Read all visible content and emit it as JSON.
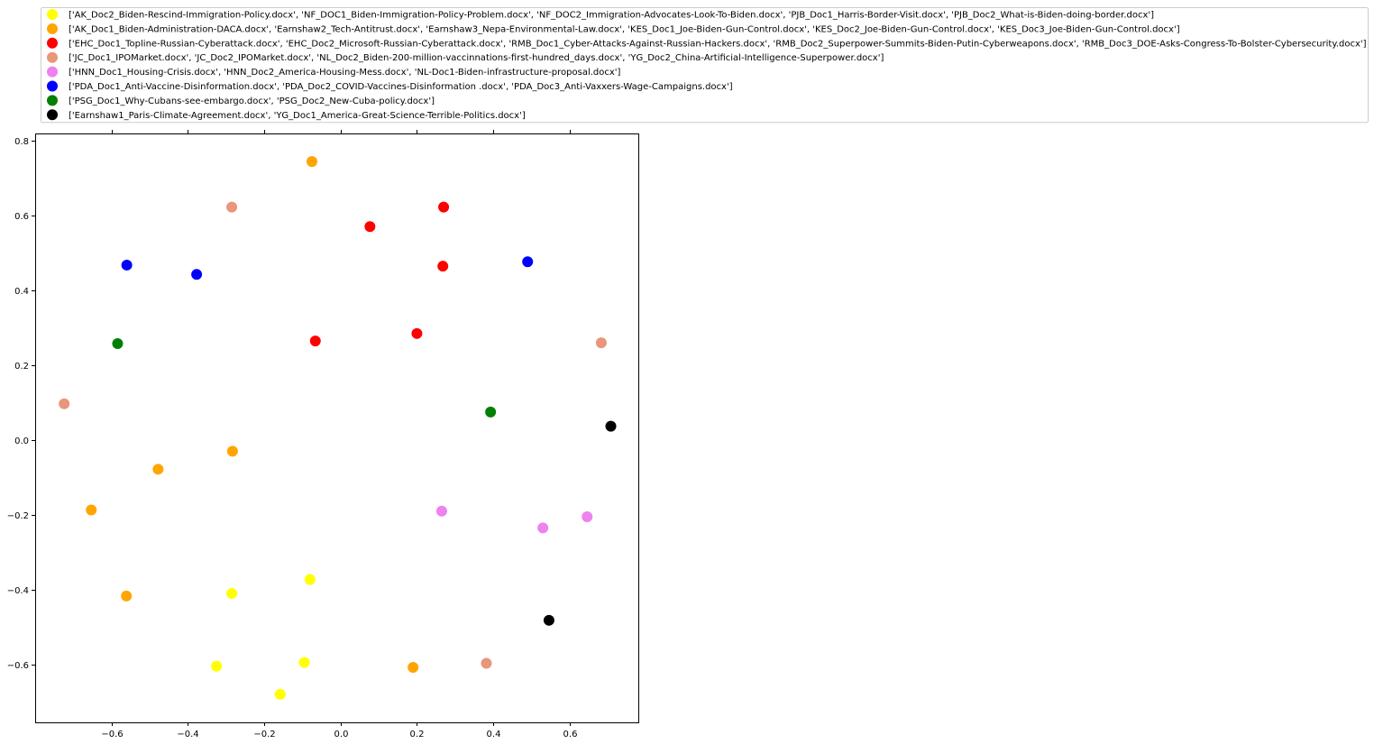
{
  "chart_data": {
    "type": "scatter",
    "title": "",
    "xlabel": "",
    "ylabel": "",
    "xlim": [
      -0.8,
      0.78
    ],
    "ylim": [
      -0.755,
      0.82
    ],
    "xticks": [
      -0.6,
      -0.4,
      -0.2,
      0.0,
      0.2,
      0.4,
      0.6
    ],
    "xtick_labels": [
      "−0.6",
      "−0.4",
      "−0.2",
      "0.0",
      "0.2",
      "0.4",
      "0.6"
    ],
    "yticks": [
      -0.6,
      -0.4,
      -0.2,
      0.0,
      0.2,
      0.4,
      0.6,
      0.8
    ],
    "ytick_labels": [
      "−0.6",
      "−0.4",
      "−0.2",
      "0.0",
      "0.2",
      "0.4",
      "0.6",
      "0.8"
    ],
    "grid": false,
    "legend_position": "top-left, above plot",
    "series": [
      {
        "name": "['AK_Doc2_Biden-Rescind-Immigration-Policy.docx', 'NF_DOC1_Biden-Immigration-Policy-Problem.docx', 'NF_DOC2_Immigration-Advocates-Look-To-Biden.docx', 'PJB_Doc1_Harris-Border-Visit.docx', 'PJB_Doc2_What-is-Biden-doing-border.docx']",
        "color": "#ffff00",
        "points": [
          [
            -0.285,
            -0.41
          ],
          [
            -0.08,
            -0.373
          ],
          [
            -0.325,
            -0.605
          ],
          [
            -0.095,
            -0.595
          ],
          [
            -0.158,
            -0.68
          ]
        ]
      },
      {
        "name": "['AK_Doc1_Biden-Administration-DACA.docx', 'Earnshaw2_Tech-Antitrust.docx', 'Earnshaw3_Nepa-Environmental-Law.docx', 'KES_Doc1_Joe-Biden-Gun-Control.docx', 'KES_Doc2_Joe-Biden-Gun-Control.docx', 'KES_Doc3_Joe-Biden-Gun-Control.docx']",
        "color": "#ffa500",
        "points": [
          [
            -0.075,
            0.745
          ],
          [
            -0.283,
            -0.03
          ],
          [
            -0.478,
            -0.078
          ],
          [
            -0.653,
            -0.187
          ],
          [
            -0.561,
            -0.417
          ],
          [
            0.19,
            -0.608
          ]
        ]
      },
      {
        "name": "['EHC_Doc1_Topline-Russian-Cyberattack.docx', 'EHC_Doc2_Microsoft-Russian-Cyberattack.docx', 'RMB_Doc1_Cyber-Attacks-Against-Russian-Hackers.docx', 'RMB_Doc2_Superpower-Summits-Biden-Putin-Cyberweapons.docx', 'RMB_Doc3_DOE-Asks-Congress-To-Bolster-Cybersecurity.docx']",
        "color": "#ff0000",
        "points": [
          [
            0.27,
            0.623
          ],
          [
            0.077,
            0.571
          ],
          [
            0.268,
            0.465
          ],
          [
            -0.066,
            0.265
          ],
          [
            0.2,
            0.285
          ]
        ]
      },
      {
        "name": "['JC_Doc1_IPOMarket.docx', 'JC_Doc2_IPOMarket.docx', 'NL_Doc2_Biden-200-million-vaccinnations-first-hundred_days.docx', 'YG_Doc2_China-Artificial-Intelligence-Superpower.docx']",
        "color": "#e9967a",
        "points": [
          [
            -0.285,
            0.623
          ],
          [
            -0.724,
            0.097
          ],
          [
            0.683,
            0.26
          ],
          [
            0.382,
            -0.597
          ]
        ]
      },
      {
        "name": "['HNN_Doc1_Housing-Crisis.docx', 'HNN_Doc2_America-Housing-Mess.docx', 'NL-Doc1-Biden-infrastructure-proposal.docx']",
        "color": "#ee82ee",
        "points": [
          [
            0.265,
            -0.19
          ],
          [
            0.53,
            -0.235
          ],
          [
            0.646,
            -0.205
          ]
        ]
      },
      {
        "name": "['PDA_Doc1_Anti-Vaccine-Disinformation.docx', 'PDA_Doc2_COVID-Vaccines-Disinformation .docx', 'PDA_Doc3_Anti-Vaxxers-Wage-Campaigns.docx']",
        "color": "#0000ff",
        "points": [
          [
            -0.56,
            0.468
          ],
          [
            -0.377,
            0.443
          ],
          [
            0.49,
            0.477
          ]
        ]
      },
      {
        "name": "['PSG_Doc1_Why-Cubans-see-embargo.docx', 'PSG_Doc2_New-Cuba-policy.docx']",
        "color": "#008000",
        "points": [
          [
            -0.584,
            0.258
          ],
          [
            0.393,
            0.075
          ]
        ]
      },
      {
        "name": "['Earnshaw1_Paris-Climate-Agreement.docx', 'YG_Doc1_America-Great-Science-Terrible-Politics.docx']",
        "color": "#000000",
        "points": [
          [
            0.708,
            0.037
          ],
          [
            0.546,
            -0.482
          ]
        ]
      }
    ]
  }
}
